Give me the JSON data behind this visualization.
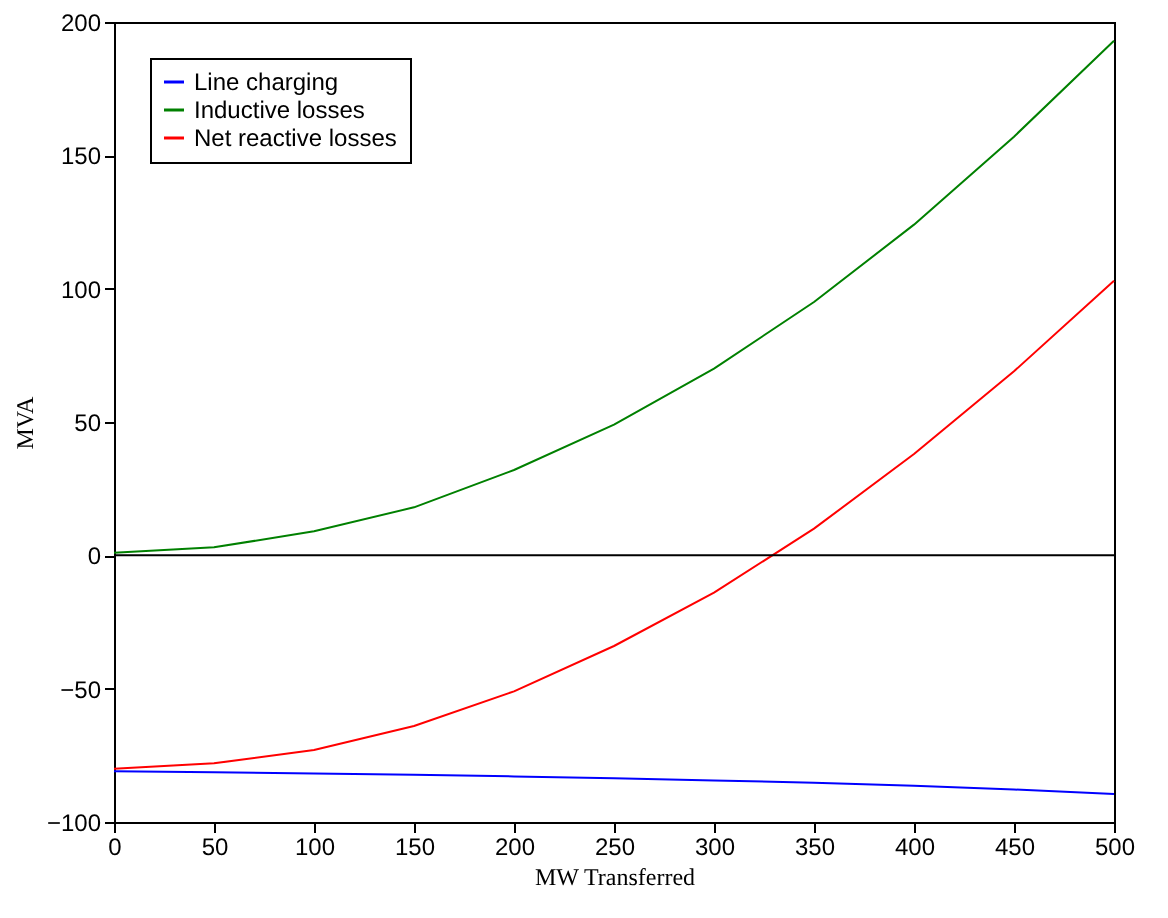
{
  "chart_data": {
    "type": "line",
    "xlabel": "MW Transferred",
    "ylabel": "MVA",
    "x": [
      0,
      50,
      100,
      150,
      200,
      250,
      300,
      350,
      400,
      450,
      500
    ],
    "series": [
      {
        "name": "Line charging",
        "color": "#0000ff",
        "values": [
          -81,
          -81.3,
          -81.8,
          -82.3,
          -82.9,
          -83.6,
          -84.4,
          -85.3,
          -86.4,
          -87.8,
          -89.5
        ]
      },
      {
        "name": "Inductive losses",
        "color": "#008000",
        "values": [
          1,
          3,
          9,
          18,
          32,
          49,
          70,
          95,
          124,
          157,
          193
        ]
      },
      {
        "name": "Net reactive losses",
        "color": "#ff0000",
        "values": [
          -80,
          -78,
          -73,
          -64,
          -51,
          -34,
          -14,
          10,
          38,
          69,
          103
        ]
      }
    ],
    "xlim": [
      0,
      500
    ],
    "xticks": [
      0,
      50,
      100,
      150,
      200,
      250,
      300,
      350,
      400,
      450,
      500
    ],
    "ylim": [
      -100,
      200
    ],
    "yticks": [
      -100,
      -50,
      0,
      50,
      100,
      150,
      200
    ],
    "ref_lines": [
      {
        "axis": "y",
        "value": 0,
        "color": "#000000"
      }
    ],
    "grid": false,
    "legend": "top left",
    "marker": "none",
    "line_style": "solid"
  }
}
